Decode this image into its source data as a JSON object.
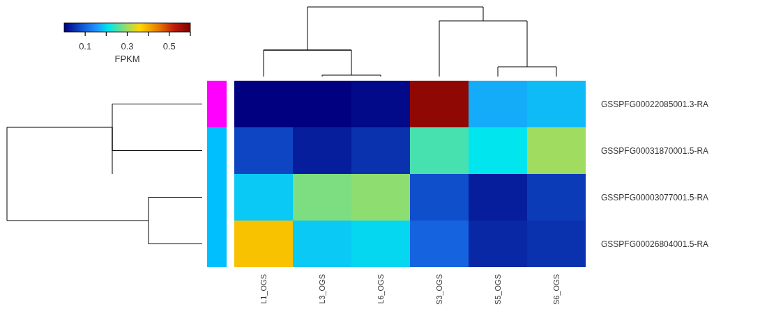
{
  "chart_data": {
    "type": "heatmap",
    "clabel": "FPKM",
    "categories": [
      "L1_OGS",
      "L3_OGS",
      "L6_OGS",
      "S3_OGS",
      "S5_OGS",
      "S6_OGS"
    ],
    "y_categories": [
      "GSSPFG00022085001.3-RA",
      "GSSPFG00031870001.5-RA",
      "GSSPFG00003077001.5-RA",
      "GSSPFG00026804001.5-RA"
    ],
    "cells": [
      [
        0.0,
        0.0,
        0.01,
        0.58,
        0.17,
        0.18
      ],
      [
        0.07,
        0.03,
        0.05,
        0.25,
        0.21,
        0.3
      ],
      [
        0.19,
        0.28,
        0.29,
        0.08,
        0.03,
        0.06
      ],
      [
        0.38,
        0.19,
        0.2,
        0.1,
        0.04,
        0.05
      ]
    ],
    "clim": [
      0,
      0.6
    ],
    "cticks": [
      {
        "value": 0.1,
        "label": "0.1"
      },
      {
        "value": 0.2,
        "label": null
      },
      {
        "value": 0.3,
        "label": "0.3"
      },
      {
        "value": 0.4,
        "label": null
      },
      {
        "value": 0.5,
        "label": "0.5"
      },
      {
        "value": 0.6,
        "label": null
      }
    ]
  }
}
